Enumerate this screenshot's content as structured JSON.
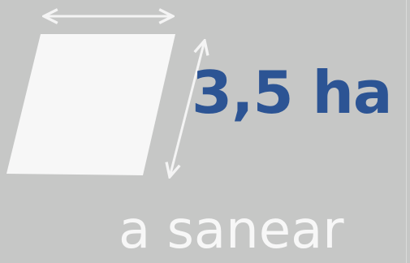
{
  "infographic": {
    "value_text": "3,5 ha",
    "caption": "a sanear"
  },
  "colors": {
    "background": "#c6c7c6",
    "value": "#2c5494",
    "caption": "#f7f7f7",
    "shape": "#f7f7f7",
    "arrows": "#f4f4f4"
  },
  "icons": {
    "plot": "parallelogram-plot-icon",
    "width_arrow": "horizontal-double-arrow-icon",
    "height_arrow": "diagonal-double-arrow-icon"
  }
}
